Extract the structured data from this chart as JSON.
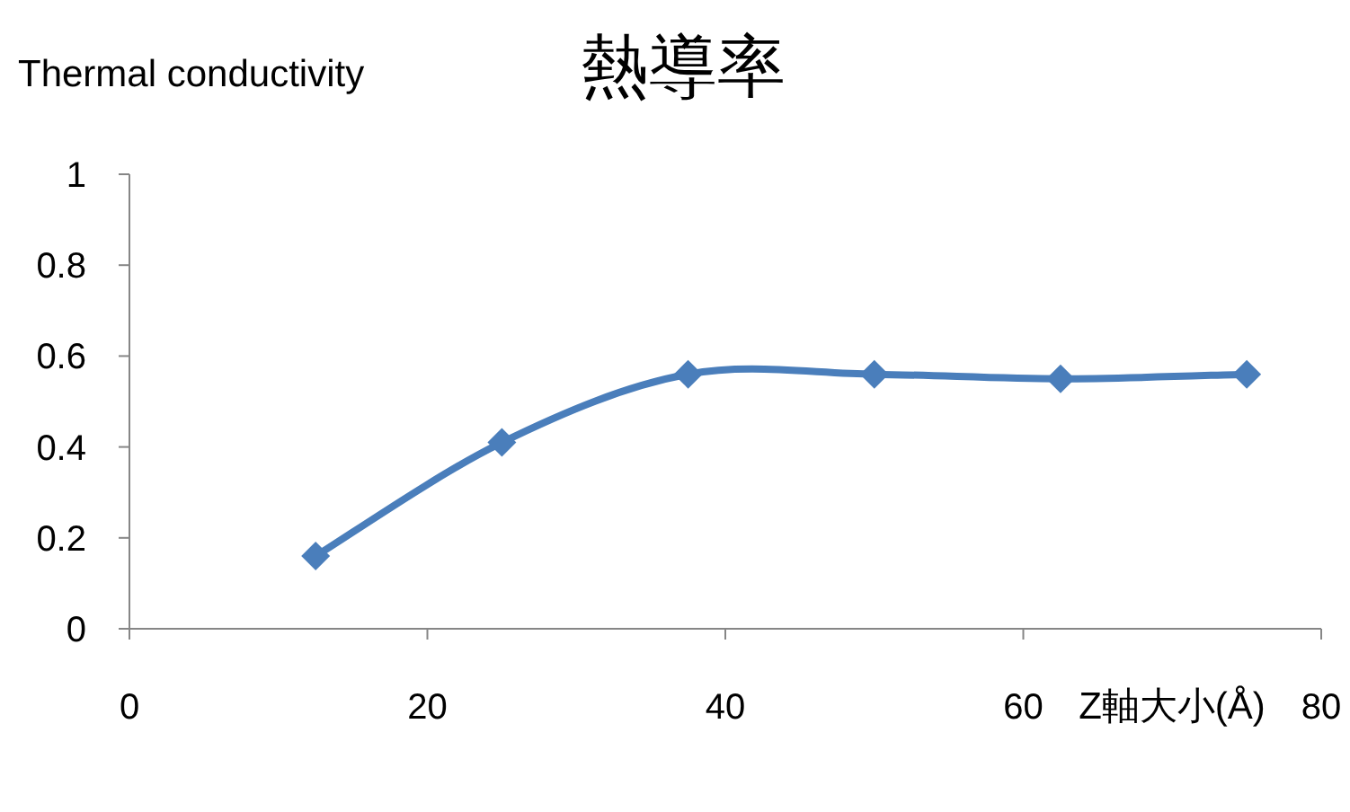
{
  "chart_data": {
    "type": "line",
    "title": "熱導率",
    "xlabel": "Z軸大小(Å)",
    "ylabel": "Thermal conductivity",
    "x": [
      12.5,
      25,
      37.5,
      50,
      62.5,
      75
    ],
    "series": [
      {
        "color": "#4a7ebb",
        "values": [
          0.16,
          0.41,
          0.56,
          0.56,
          0.55,
          0.56
        ]
      }
    ],
    "xlim": [
      0,
      80
    ],
    "xticks": [
      0,
      20,
      40,
      60,
      80
    ],
    "ylim": [
      0,
      1
    ],
    "yticks": [
      0,
      0.2,
      0.4,
      0.6,
      0.8,
      1
    ],
    "marker": "diamond",
    "line_style": "solid"
  }
}
